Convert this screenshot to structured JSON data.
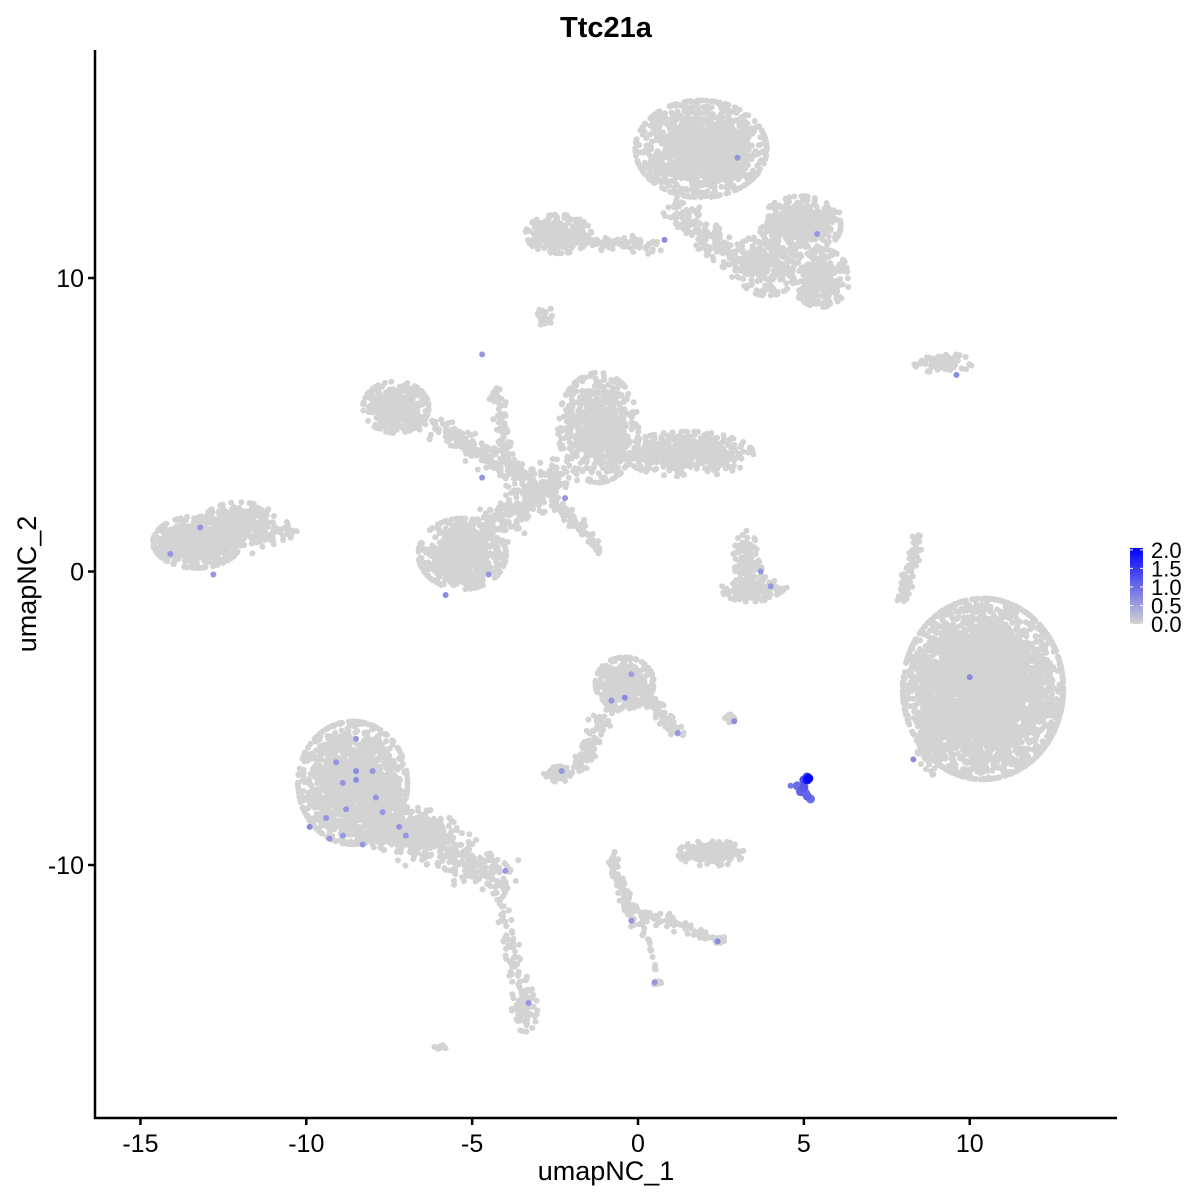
{
  "chart_data": {
    "type": "scatter",
    "title": "Ttc21a",
    "xlabel": "umapNC_1",
    "ylabel": "umapNC_2",
    "xlim": [
      -16.37,
      14.44
    ],
    "ylim": [
      -18.62,
      17.77
    ],
    "x_ticks": [
      -15,
      -10,
      -5,
      0,
      5,
      10
    ],
    "x_tick_labels": [
      "-15",
      "-10",
      "-5",
      "0",
      "5",
      "10"
    ],
    "y_ticks": [
      -10,
      0,
      10
    ],
    "y_tick_labels": [
      "-10",
      "0",
      "10"
    ],
    "grid": false,
    "legend": {
      "placement": "right",
      "type": "colorbar",
      "range": [
        0,
        2.05
      ],
      "ticks": [
        0,
        0.5,
        1,
        1.5,
        2
      ],
      "tick_labels": [
        "0.0",
        "0.5",
        "1.0",
        "1.5",
        "2.0"
      ],
      "low_color": "#D3D3D3",
      "high_color": "#0000FF"
    },
    "background_expression": 0,
    "background_clusters": [
      {
        "cx": 1.9,
        "cy": 14.4,
        "sx": 0.9,
        "sy": 0.75,
        "n": 1400
      },
      {
        "cx": 4.9,
        "cy": 11.8,
        "sx": 0.55,
        "sy": 0.45,
        "n": 350
      },
      {
        "cx": 5.5,
        "cy": 10.0,
        "sx": 0.4,
        "sy": 0.45,
        "n": 300
      },
      {
        "cx": 3.9,
        "cy": 10.5,
        "sx": 0.45,
        "sy": 0.5,
        "n": 250
      },
      {
        "cx": -2.4,
        "cy": 11.5,
        "sx": 0.45,
        "sy": 0.3,
        "n": 300
      },
      {
        "cx": -2.8,
        "cy": 8.7,
        "sx": 0.12,
        "sy": 0.15,
        "n": 20
      },
      {
        "cx": 9.2,
        "cy": 7.1,
        "sx": 0.4,
        "sy": 0.15,
        "n": 90
      },
      {
        "cx": -7.3,
        "cy": 5.6,
        "sx": 0.45,
        "sy": 0.4,
        "n": 350
      },
      {
        "cx": -1.2,
        "cy": 4.9,
        "sx": 0.55,
        "sy": 0.85,
        "n": 700
      },
      {
        "cx": 1.5,
        "cy": 4.0,
        "sx": 0.9,
        "sy": 0.35,
        "n": 500
      },
      {
        "cx": -5.3,
        "cy": 0.6,
        "sx": 0.6,
        "sy": 0.55,
        "n": 800
      },
      {
        "cx": -13.3,
        "cy": 1.0,
        "sx": 0.6,
        "sy": 0.4,
        "n": 650
      },
      {
        "cx": -12.0,
        "cy": 1.7,
        "sx": 0.5,
        "sy": 0.3,
        "n": 200
      },
      {
        "cx": 3.3,
        "cy": 0.3,
        "sx": 0.2,
        "sy": 0.5,
        "n": 120
      },
      {
        "cx": 3.5,
        "cy": -0.6,
        "sx": 0.45,
        "sy": 0.2,
        "n": 150
      },
      {
        "cx": 10.4,
        "cy": -4.0,
        "sx": 1.1,
        "sy": 1.4,
        "n": 4200
      },
      {
        "cx": 8.8,
        "cy": -5.2,
        "sx": 0.2,
        "sy": 0.8,
        "n": 250
      },
      {
        "cx": -0.4,
        "cy": -3.8,
        "sx": 0.4,
        "sy": 0.4,
        "n": 450
      },
      {
        "cx": -2.4,
        "cy": -6.9,
        "sx": 0.2,
        "sy": 0.12,
        "n": 60
      },
      {
        "cx": -8.6,
        "cy": -7.2,
        "sx": 0.75,
        "sy": 0.95,
        "n": 1500
      },
      {
        "cx": -7.0,
        "cy": -8.8,
        "sx": 0.7,
        "sy": 0.35,
        "n": 400
      },
      {
        "cx": 2.2,
        "cy": -9.6,
        "sx": 0.45,
        "sy": 0.2,
        "n": 200
      },
      {
        "cx": 2.8,
        "cy": -5.0,
        "sx": 0.15,
        "sy": 0.06,
        "n": 15
      },
      {
        "cx": -3.4,
        "cy": -14.8,
        "sx": 0.2,
        "sy": 0.4,
        "n": 90
      },
      {
        "cx": 0.6,
        "cy": -14.0,
        "sx": 0.06,
        "sy": 0.06,
        "n": 8
      },
      {
        "cx": -6.0,
        "cy": -16.2,
        "sx": 0.1,
        "sy": 0.05,
        "n": 8
      }
    ],
    "background_strands": [
      {
        "from": [
          -2.9,
          11.4
        ],
        "to": [
          0.6,
          11.1
        ],
        "spread": 0.12,
        "n": 120
      },
      {
        "from": [
          1.0,
          12.4
        ],
        "to": [
          3.2,
          10.4
        ],
        "spread": 0.25,
        "n": 200
      },
      {
        "from": [
          3.9,
          11.9
        ],
        "to": [
          5.9,
          12.1
        ],
        "spread": 0.15,
        "n": 80
      },
      {
        "from": [
          -4.3,
          6.3
        ],
        "to": [
          -3.8,
          3.3
        ],
        "spread": 0.12,
        "n": 90
      },
      {
        "from": [
          -6.2,
          5.0
        ],
        "to": [
          -3.0,
          3.0
        ],
        "spread": 0.2,
        "n": 220
      },
      {
        "from": [
          -4.5,
          1.5
        ],
        "to": [
          -2.2,
          3.3
        ],
        "spread": 0.3,
        "n": 260
      },
      {
        "from": [
          -2.6,
          2.5
        ],
        "to": [
          -1.2,
          0.8
        ],
        "spread": 0.1,
        "n": 80
      },
      {
        "from": [
          -14.0,
          1.0
        ],
        "to": [
          -10.5,
          1.3
        ],
        "spread": 0.2,
        "n": 150
      },
      {
        "from": [
          8.5,
          1.2
        ],
        "to": [
          7.9,
          -1.0
        ],
        "spread": 0.08,
        "n": 90
      },
      {
        "from": [
          -1.8,
          -6.8
        ],
        "to": [
          -0.6,
          -4.0
        ],
        "spread": 0.15,
        "n": 120
      },
      {
        "from": [
          0.2,
          -4.2
        ],
        "to": [
          1.2,
          -5.5
        ],
        "spread": 0.12,
        "n": 70
      },
      {
        "from": [
          -8.0,
          -8.5
        ],
        "to": [
          -4.1,
          -10.4
        ],
        "spread": 0.3,
        "n": 350
      },
      {
        "from": [
          -4.3,
          -10.5
        ],
        "to": [
          -3.6,
          -14.0
        ],
        "spread": 0.12,
        "n": 60
      },
      {
        "from": [
          -0.9,
          -9.5
        ],
        "to": [
          -0.1,
          -12.0
        ],
        "spread": 0.12,
        "n": 80
      },
      {
        "from": [
          0.0,
          -11.6
        ],
        "to": [
          2.5,
          -12.6
        ],
        "spread": 0.12,
        "n": 80
      },
      {
        "from": [
          0.2,
          -12.2
        ],
        "to": [
          0.6,
          -14.0
        ],
        "spread": 0.05,
        "n": 15
      }
    ],
    "expressing_points": [
      {
        "x": 3.0,
        "y": 14.1,
        "value": 0.6
      },
      {
        "x": 0.8,
        "y": 11.3,
        "value": 0.7
      },
      {
        "x": 5.4,
        "y": 11.5,
        "value": 0.6
      },
      {
        "x": -4.7,
        "y": 7.4,
        "value": 0.6
      },
      {
        "x": 9.6,
        "y": 6.7,
        "value": 0.7
      },
      {
        "x": -4.7,
        "y": 3.2,
        "value": 0.6
      },
      {
        "x": -2.2,
        "y": 2.5,
        "value": 0.6
      },
      {
        "x": -13.2,
        "y": 1.5,
        "value": 0.6
      },
      {
        "x": -14.1,
        "y": 0.6,
        "value": 0.6
      },
      {
        "x": -12.8,
        "y": -0.1,
        "value": 0.6
      },
      {
        "x": -5.8,
        "y": -0.8,
        "value": 0.7
      },
      {
        "x": -4.5,
        "y": -0.1,
        "value": 0.6
      },
      {
        "x": 3.7,
        "y": 0.0,
        "value": 0.6
      },
      {
        "x": 4.0,
        "y": -0.5,
        "value": 0.6
      },
      {
        "x": 10.0,
        "y": -3.6,
        "value": 0.7
      },
      {
        "x": 8.3,
        "y": -6.4,
        "value": 0.7
      },
      {
        "x": -0.2,
        "y": -3.5,
        "value": 0.5
      },
      {
        "x": -0.4,
        "y": -4.3,
        "value": 0.7
      },
      {
        "x": -0.8,
        "y": -4.4,
        "value": 0.6
      },
      {
        "x": 2.9,
        "y": -5.1,
        "value": 0.7
      },
      {
        "x": 1.2,
        "y": -5.5,
        "value": 0.6
      },
      {
        "x": -2.3,
        "y": -6.8,
        "value": 0.6
      },
      {
        "x": -8.5,
        "y": -5.7,
        "value": 0.6
      },
      {
        "x": -9.1,
        "y": -6.5,
        "value": 0.6
      },
      {
        "x": -8.5,
        "y": -6.8,
        "value": 0.7
      },
      {
        "x": -8.9,
        "y": -7.2,
        "value": 0.6
      },
      {
        "x": -8.0,
        "y": -6.8,
        "value": 0.6
      },
      {
        "x": -8.5,
        "y": -7.1,
        "value": 0.7
      },
      {
        "x": -7.9,
        "y": -7.7,
        "value": 0.6
      },
      {
        "x": -8.8,
        "y": -8.1,
        "value": 0.6
      },
      {
        "x": -9.4,
        "y": -8.4,
        "value": 0.6
      },
      {
        "x": -7.7,
        "y": -8.2,
        "value": 0.6
      },
      {
        "x": -9.9,
        "y": -8.7,
        "value": 0.7
      },
      {
        "x": -8.9,
        "y": -9.0,
        "value": 0.6
      },
      {
        "x": -9.3,
        "y": -9.1,
        "value": 0.6
      },
      {
        "x": -8.3,
        "y": -9.3,
        "value": 0.6
      },
      {
        "x": -7.2,
        "y": -8.7,
        "value": 0.6
      },
      {
        "x": -7.0,
        "y": -9.0,
        "value": 0.6
      },
      {
        "x": -4.0,
        "y": -10.2,
        "value": 0.6
      },
      {
        "x": -0.2,
        "y": -11.9,
        "value": 0.6
      },
      {
        "x": 2.4,
        "y": -12.6,
        "value": 0.7
      },
      {
        "x": 0.5,
        "y": -14.0,
        "value": 0.6
      },
      {
        "x": -3.3,
        "y": -14.7,
        "value": 0.6
      },
      {
        "x": 4.8,
        "y": -7.3,
        "value": 1.0
      },
      {
        "x": 4.6,
        "y": -7.3,
        "value": 0.9
      },
      {
        "x": 4.9,
        "y": -7.5,
        "value": 1.1
      },
      {
        "x": 5.0,
        "y": -7.35,
        "value": 1.2
      },
      {
        "x": 5.05,
        "y": -7.55,
        "value": 1.0
      },
      {
        "x": 5.1,
        "y": -7.65,
        "value": 1.1
      },
      {
        "x": 5.2,
        "y": -7.75,
        "value": 1.0
      },
      {
        "x": 5.0,
        "y": -7.1,
        "value": 1.3
      },
      {
        "x": 5.1,
        "y": -7.0,
        "value": 1.5
      },
      {
        "x": 5.15,
        "y": -7.05,
        "value": 2.0
      },
      {
        "x": 5.1,
        "y": -7.1,
        "value": 1.9
      }
    ]
  }
}
